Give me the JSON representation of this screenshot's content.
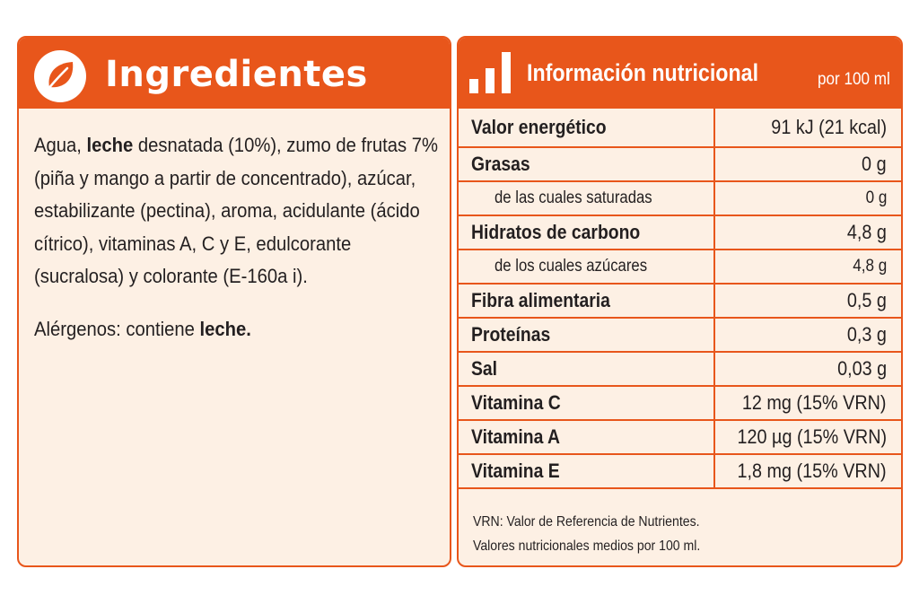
{
  "ingredients": {
    "title": "Ingredientes",
    "icon": "leaf-icon",
    "paragraph": [
      {
        "text": "Agua, ",
        "bold": false
      },
      {
        "text": "leche",
        "bold": true
      },
      {
        "text": " desnatada (10%), zumo de frutas 7% (piña y mango a partir de concentrado), azúcar, estabilizante (pectina), aroma, acidulante (ácido cítrico), vitaminas A, C y E, edulcorante (sucralosa) y colorante (E-160a i).",
        "bold": false
      }
    ],
    "allergens": [
      {
        "text": "Alérgenos: contiene ",
        "bold": false
      },
      {
        "text": "leche.",
        "bold": true
      }
    ]
  },
  "nutrition": {
    "title": "Información nutricional",
    "per": "por 100 ml",
    "icon": "bar-chart-icon",
    "rows": [
      {
        "label": "Valor energético",
        "value": "91 kJ (21 kcal)",
        "sub": false
      },
      {
        "label": "Grasas",
        "value": "0 g",
        "sub": false
      },
      {
        "label": "de las cuales saturadas",
        "value": "0 g",
        "sub": true
      },
      {
        "label": "Hidratos de carbono",
        "value": "4,8 g",
        "sub": false
      },
      {
        "label": "de los cuales azúcares",
        "value": "4,8 g",
        "sub": true
      },
      {
        "label": "Fibra alimentaria",
        "value": "0,5 g",
        "sub": false
      },
      {
        "label": "Proteínas",
        "value": "0,3 g",
        "sub": false
      },
      {
        "label": "Sal",
        "value": "0,03 g",
        "sub": false
      },
      {
        "label": "Vitamina C",
        "value": "12 mg (15% VRN)",
        "sub": false
      },
      {
        "label": "Vitamina A",
        "value": "120 µg (15% VRN)",
        "sub": false
      },
      {
        "label": "Vitamina E",
        "value": "1,8 mg (15% VRN)",
        "sub": false
      }
    ],
    "footnote": [
      "VRN: Valor de Referencia de Nutrientes.",
      "Valores nutricionales medios por 100 ml."
    ]
  },
  "colors": {
    "accent": "#e8561b",
    "panel_bg": "#fdf0e4",
    "text": "#231f20"
  }
}
